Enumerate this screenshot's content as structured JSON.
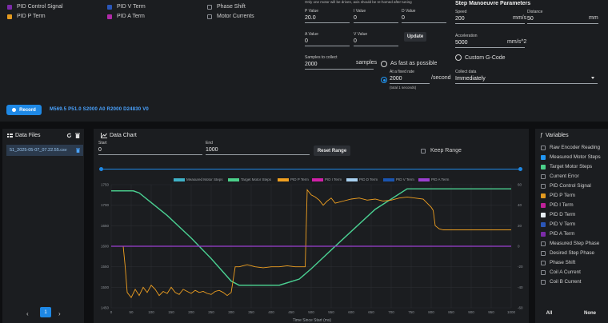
{
  "colors": {
    "accent": "#1e88e5",
    "measured": "#3fb1c7",
    "target": "#4bd08a",
    "pid_p": "#f0a020",
    "pid_i": "#d021a8",
    "pid_d": "#a8d0f0",
    "pid_v": "#1a55b0",
    "pid_a": "#9b3fd0",
    "checkbox_purple": "#7b2ba8",
    "checkbox_blue": "#2a56b8",
    "checkbox_orange": "#e39a1f"
  },
  "signals": {
    "col1": [
      {
        "label": "PID Control Signal",
        "checked": true,
        "color": "#7b2ba8"
      },
      {
        "label": "PID P Term",
        "checked": true,
        "color": "#e39a1f"
      }
    ],
    "col2": [
      {
        "label": "PID V Term",
        "checked": true,
        "color": "#2a56b8"
      },
      {
        "label": "PID A Term",
        "checked": true,
        "color": "#b02aa8"
      }
    ],
    "col3": [
      {
        "label": "Phase Shift",
        "checked": false
      },
      {
        "label": "Motor Currents",
        "checked": false
      }
    ]
  },
  "pid": {
    "note": "Only one motor will be driven, axis should be re-homed after tuning",
    "p_label": "P Value",
    "p_value": "20.0",
    "i_label": "I Value",
    "i_value": "0",
    "d_label": "D Value",
    "d_value": "0",
    "a_label": "A Value",
    "a_value": "0",
    "v_label": "V Value",
    "v_value": "0",
    "update": "Update",
    "samples_label": "Samples to collect",
    "samples_value": "2000",
    "samples_unit": "samples",
    "fast_label": "As fast as possible",
    "fixed_label": "At a fixed rate",
    "fixed_value": "2000",
    "fixed_unit": "/second",
    "fixed_note": "(total 1 seconds)"
  },
  "step": {
    "title": "Step Manoeuvre Parameters",
    "speed_label": "Speed",
    "speed_value": "200",
    "speed_unit": "mm/s",
    "distance_label": "Distance",
    "distance_value": "50",
    "distance_unit": "mm",
    "accel_label": "Acceleration",
    "accel_value": "5000",
    "accel_unit": "mm/s^2",
    "custom": "Custom G-Code",
    "collect_label": "Collect data",
    "collect_value": "Immediately"
  },
  "record": {
    "label": "Record",
    "gcode": "M569.5 P51.0 S2000 A0 R2000 D24830 V0"
  },
  "files": {
    "title": "Data Files",
    "items": [
      {
        "name": "51_2025-05-07_07.22.55.csv"
      }
    ],
    "page": "1"
  },
  "chart": {
    "title": "Data Chart",
    "start_label": "Start",
    "start_value": "0",
    "end_label": "End",
    "end_value": "1000",
    "reset": "Reset Range",
    "keep": "Keep Range"
  },
  "chart_data": {
    "type": "line",
    "xlabel": "Time Since Start (ms)",
    "xlim": [
      0,
      1000
    ],
    "x_ticks": [
      "0",
      "50",
      "100",
      "150",
      "200",
      "250",
      "300",
      "350",
      "400",
      "450",
      "500",
      "550",
      "600",
      "650",
      "700",
      "750",
      "800",
      "850",
      "900",
      "950",
      "1000"
    ],
    "y_left_ticks": [
      "1750",
      "1700",
      "1650",
      "1600",
      "1550",
      "1500",
      "1450"
    ],
    "y_right_ticks": [
      "60",
      "40",
      "20",
      "0",
      "-20",
      "-40",
      "-60"
    ],
    "legend": [
      "Measured Motor Steps",
      "Target Motor Steps",
      "PID P Term",
      "PID I Term",
      "PID D Term",
      "PID V Term",
      "PID A Term"
    ],
    "series": [
      {
        "name": "Measured Motor Steps",
        "axis": "left",
        "x": [
          0,
          55,
          70,
          140,
          200,
          250,
          300,
          320,
          420,
          470,
          500,
          560,
          610,
          660,
          740,
          840,
          1000
        ],
        "y": [
          1735,
          1735,
          1730,
          1675,
          1620,
          1570,
          1515,
          1505,
          1505,
          1520,
          1545,
          1600,
          1645,
          1690,
          1740,
          1740,
          1740
        ]
      },
      {
        "name": "Target Motor Steps",
        "axis": "left",
        "x": [
          0,
          55,
          70,
          140,
          200,
          250,
          300,
          320,
          420,
          470,
          500,
          560,
          610,
          660,
          740,
          840,
          1000
        ],
        "y": [
          1735,
          1735,
          1730,
          1675,
          1620,
          1570,
          1515,
          1505,
          1505,
          1520,
          1545,
          1600,
          1645,
          1690,
          1740,
          1740,
          1740
        ]
      },
      {
        "name": "PID P Term",
        "axis": "right",
        "x": [
          0,
          30,
          35,
          40,
          50,
          60,
          70,
          80,
          90,
          100,
          110,
          120,
          130,
          140,
          150,
          160,
          170,
          180,
          190,
          200,
          210,
          220,
          230,
          240,
          250,
          260,
          270,
          280,
          290,
          300,
          310,
          320,
          340,
          360,
          380,
          400,
          420,
          440,
          460,
          470,
          480,
          485,
          490,
          500,
          510,
          520,
          530,
          540,
          550,
          560,
          580,
          600,
          620,
          640,
          660,
          680,
          700,
          720,
          740,
          780,
          800,
          805,
          810,
          820,
          830,
          900,
          1000
        ],
        "y": [
          0,
          0,
          -20,
          -45,
          -50,
          -42,
          -48,
          -40,
          -45,
          -38,
          -42,
          -48,
          -44,
          -46,
          -40,
          -45,
          -47,
          -42,
          -44,
          -46,
          -43,
          -45,
          -44,
          -46,
          -47,
          -44,
          -43,
          -45,
          -48,
          -45,
          -20,
          -20,
          -18,
          -20,
          -21,
          -20,
          -20,
          -19,
          -20,
          -20,
          -20,
          -20,
          55,
          50,
          48,
          45,
          40,
          44,
          47,
          42,
          44,
          46,
          47,
          45,
          46,
          44,
          45,
          47,
          48,
          46,
          38,
          35,
          20,
          17,
          16,
          16,
          16
        ]
      },
      {
        "name": "PID A Term",
        "axis": "right",
        "x": [
          0,
          1000
        ],
        "y": [
          0,
          0
        ]
      }
    ]
  },
  "variables": {
    "title": "Variables",
    "items": [
      {
        "label": "Raw Encoder Reading",
        "checked": false
      },
      {
        "label": "Measured Motor Steps",
        "checked": true,
        "color": "#2196f3"
      },
      {
        "label": "Target Motor Steps",
        "checked": true,
        "color": "#4bd08a"
      },
      {
        "label": "Current Error",
        "checked": false
      },
      {
        "label": "PID Control Signal",
        "checked": false
      },
      {
        "label": "PID P Term",
        "checked": true,
        "color": "#e39a1f"
      },
      {
        "label": "PID I Term",
        "checked": true,
        "color": "#c0219a"
      },
      {
        "label": "PID D Term",
        "checked": true,
        "color": "#e8eef4"
      },
      {
        "label": "PID V Term",
        "checked": true,
        "color": "#2a56b8"
      },
      {
        "label": "PID A Term",
        "checked": true,
        "color": "#7b2ba8"
      },
      {
        "label": "Measured Step Phase",
        "checked": false
      },
      {
        "label": "Desired Step Phase",
        "checked": false
      },
      {
        "label": "Phase Shift",
        "checked": false
      },
      {
        "label": "Coil A Current",
        "checked": false
      },
      {
        "label": "Coil B Current",
        "checked": false
      }
    ],
    "all": "All",
    "none": "None"
  }
}
